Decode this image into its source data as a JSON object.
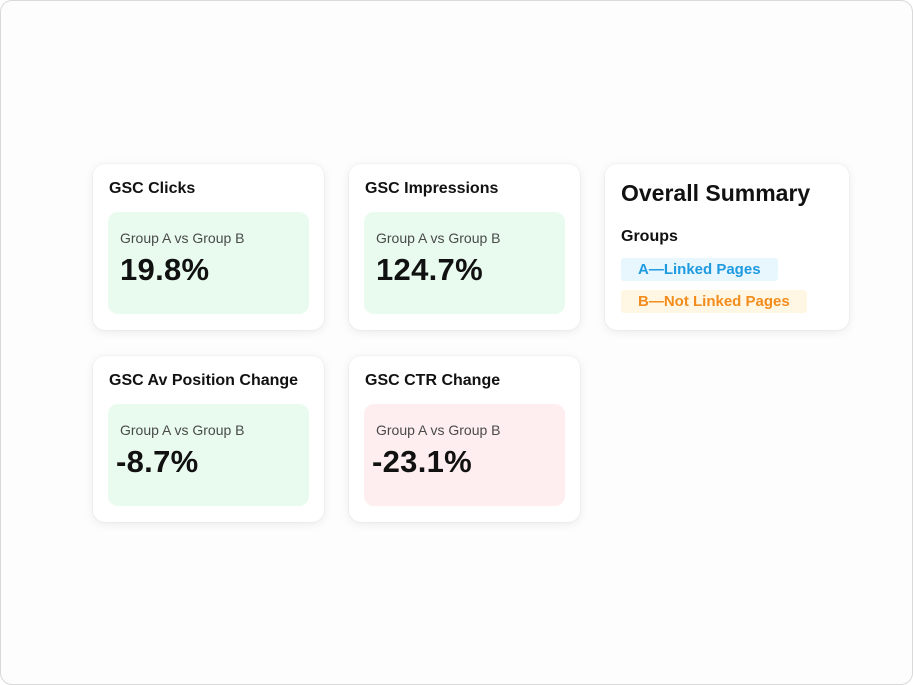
{
  "cards": [
    {
      "title": "GSC Clicks",
      "label": "Group A vs Group B",
      "value": "19.8%",
      "tone": "green"
    },
    {
      "title": "GSC Impressions",
      "label": "Group A vs Group B",
      "value": "124.7%",
      "tone": "green"
    },
    {
      "title": "GSC Av Position Change",
      "label": "Group A vs Group B",
      "value": "-8.7%",
      "tone": "green"
    },
    {
      "title": "GSC CTR Change",
      "label": "Group A vs Group B",
      "value": "-23.1%",
      "tone": "red"
    }
  ],
  "summary": {
    "title": "Overall Summary",
    "groups_heading": "Groups",
    "groups": [
      {
        "label": "A—Linked Pages",
        "color": "#1e9be0",
        "background": "#e8f6fd"
      },
      {
        "label": "B—Not Linked Pages",
        "color": "#f28c1c",
        "background": "#fff7e3"
      }
    ]
  },
  "colors": {
    "positive_box": "#e8fbee",
    "negative_box": "#feeef0",
    "text_primary": "#111111",
    "text_secondary": "#4a4a4a"
  }
}
